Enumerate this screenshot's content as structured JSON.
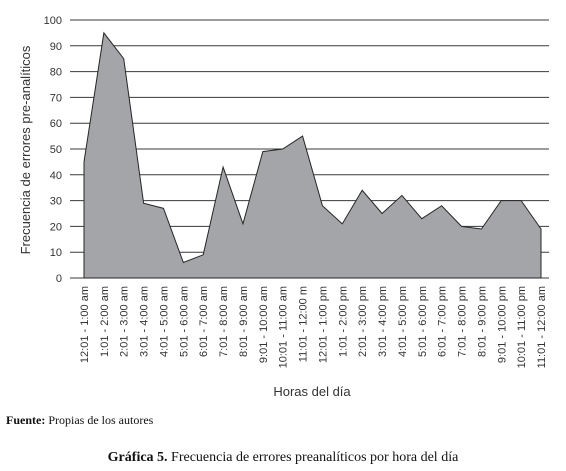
{
  "chart_data": {
    "type": "area",
    "categories": [
      "12:01 - 1:00 am",
      "1:01 - 2:00 am",
      "2:01 - 3:00 am",
      "3:01 - 4:00 am",
      "4:01 - 5:00 am",
      "5:01 - 6:00 am",
      "6:01 - 7:00 am",
      "7:01 - 8:00 am",
      "8:01 - 9:00 am",
      "9:01 - 10:00 am",
      "10:01 - 11:00 am",
      "11:01 - 12:00 m",
      "12:01 - 1:00 pm",
      "1:01 - 2:00 pm",
      "2:01 - 3:00 pm",
      "3:01 - 4:00 pm",
      "4:01 - 5:00 pm",
      "5:01 - 6:00 pm",
      "6:01 - 7:00 pm",
      "7:01 - 8:00 pm",
      "8:01 - 9:00 pm",
      "9:01 - 10:00 pm",
      "10:01 - 11:00 pm",
      "11:01 - 12:00 am"
    ],
    "values": [
      45,
      95,
      85,
      29,
      27,
      6,
      9,
      43,
      21,
      49,
      50,
      55,
      28,
      21,
      34,
      25,
      32,
      23,
      28,
      20,
      19,
      30,
      30,
      19
    ],
    "xlabel": "Horas del día",
    "ylabel": "Frecuencia de errores pre-analíticos",
    "ylim": [
      0,
      100
    ],
    "yticks": [
      0,
      10,
      20,
      30,
      40,
      50,
      60,
      70,
      80,
      90,
      100
    ],
    "grid": "horizontal",
    "colors": {
      "fill": "#a3a5a8",
      "line": "#262626",
      "grid": "#3a3a3a"
    }
  },
  "source": {
    "label": "Fuente:",
    "text": " Propias de los autores"
  },
  "caption": {
    "label": "Gráfica 5.",
    "text": " Frecuencia de errores preanalíticos por hora del día"
  }
}
